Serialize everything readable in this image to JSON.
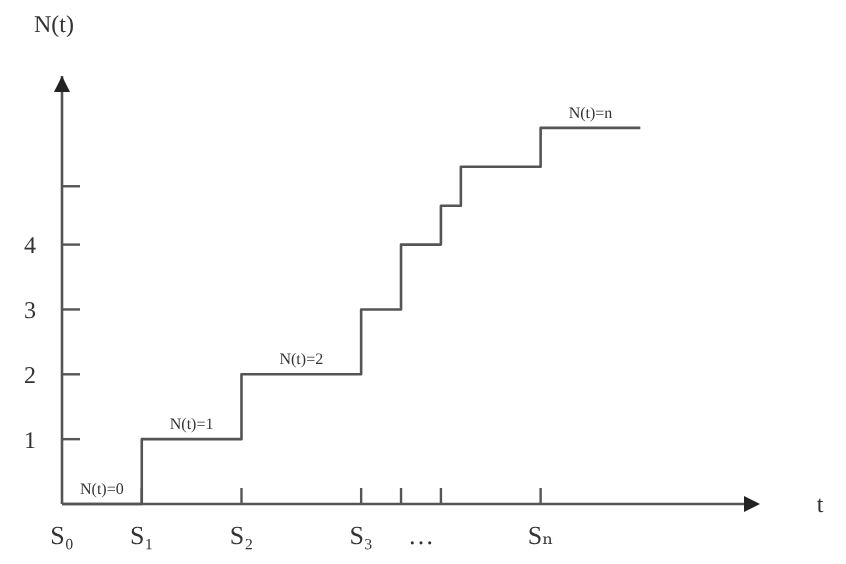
{
  "chart_data": {
    "type": "step",
    "xlabel": "t",
    "ylabel": "N(t)",
    "categories": [
      "S₀",
      null,
      null,
      null,
      "S₁",
      null,
      null,
      null,
      null,
      "S₂",
      null,
      null,
      null,
      null,
      null,
      "S₃",
      null,
      null,
      "…",
      null,
      null,
      null,
      null,
      null,
      "Sₙ",
      null,
      null,
      null,
      null,
      null,
      null,
      null,
      null,
      null,
      null,
      null
    ],
    "series": [
      {
        "color": "#555555",
        "values": [
          0,
          0,
          0,
          0,
          1,
          1,
          1,
          1,
          1,
          2,
          2,
          2,
          2,
          2,
          2,
          3,
          3,
          4,
          4,
          4.6,
          5.2,
          5.2,
          5.2,
          5.2,
          5.8,
          5.8,
          5.8,
          5.8,
          5.8,
          5.8,
          null,
          null,
          null,
          null,
          null,
          null
        ]
      }
    ],
    "ylim": [
      0,
      6.6
    ],
    "yticks": [
      1,
      2,
      3,
      4,
      {
        "value": 4.9,
        "label": null
      }
    ],
    "annotations": [
      {
        "text": "N(t)=0",
        "y": 0
      },
      {
        "text": "N(t)=1",
        "y": 1
      },
      {
        "text": "N(t)=2",
        "y": 2
      },
      {
        "text": "N(t)=n",
        "y": 5.8
      }
    ],
    "grid": false
  }
}
